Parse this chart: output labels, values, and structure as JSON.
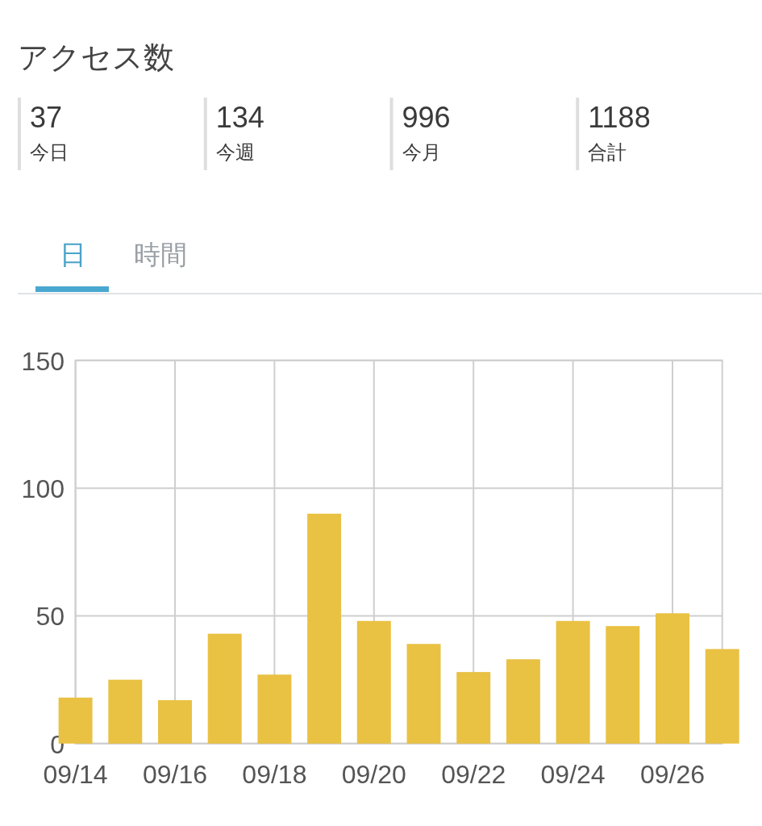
{
  "chart_data": [
    {
      "type": "other",
      "title": "アクセス数",
      "categories": [
        "今日",
        "今週",
        "今月",
        "合計"
      ],
      "values": [
        37,
        134,
        996,
        1188
      ],
      "data_labels": true
    },
    {
      "type": "bar",
      "annotations": [
        "日",
        "時間"
      ],
      "x": [
        "--09-14",
        "--09-15",
        "--09-16",
        "--09-17",
        "--09-18",
        "--09-19",
        "--09-20",
        "--09-21",
        "--09-22",
        "--09-23",
        "--09-24",
        "--09-25",
        "--09-26",
        "--09-27"
      ],
      "values": [
        18,
        25,
        17,
        43,
        27,
        90,
        48,
        39,
        28,
        33,
        48,
        46,
        51,
        37
      ],
      "color": "#e9c143",
      "xlim": [
        "--09-14",
        "--09-27"
      ],
      "xticks": [
        {
          "value": "--09-14",
          "label": "09/14"
        },
        {
          "value": "--09-16",
          "label": "09/16"
        },
        {
          "value": "--09-18",
          "label": "09/18"
        },
        {
          "value": "--09-20",
          "label": "09/20"
        },
        {
          "value": "--09-22",
          "label": "09/22"
        },
        {
          "value": "--09-24",
          "label": "09/24"
        },
        {
          "value": "--09-26",
          "label": "09/26"
        }
      ],
      "ylim": [
        0,
        150
      ],
      "yticks": [
        0,
        50,
        100,
        150
      ],
      "grid": true
    }
  ]
}
